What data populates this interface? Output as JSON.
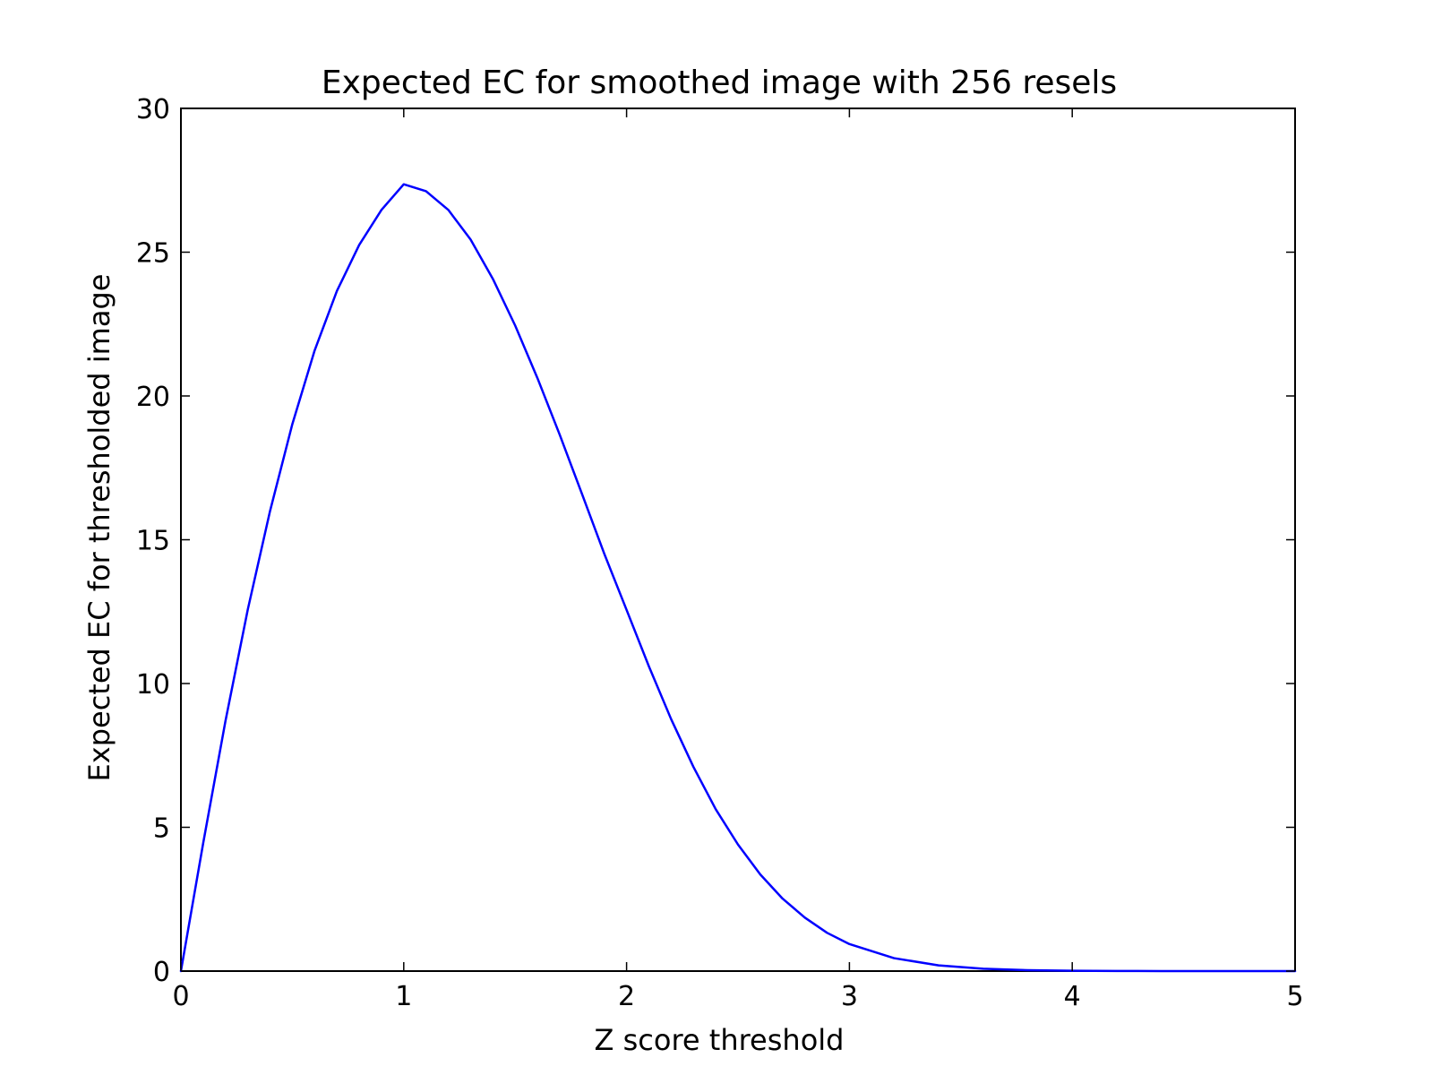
{
  "chart_data": {
    "type": "line",
    "title": "Expected EC for smoothed image with 256 resels",
    "xlabel": "Z score threshold",
    "ylabel": "Expected EC for thresholded image",
    "xlim": [
      0,
      5
    ],
    "ylim": [
      0,
      30
    ],
    "xticks": [
      0,
      1,
      2,
      3,
      4,
      5
    ],
    "yticks": [
      0,
      5,
      10,
      15,
      20,
      25,
      30
    ],
    "xtick_labels": [
      "0",
      "1",
      "2",
      "3",
      "4",
      "5"
    ],
    "ytick_labels": [
      "0",
      "5",
      "10",
      "15",
      "20",
      "25",
      "30"
    ],
    "grid": false,
    "line_color": "#0000ff",
    "series": [
      {
        "x": [
          0,
          0.1,
          0.2,
          0.3,
          0.4,
          0.5,
          0.6,
          0.7,
          0.8,
          0.9,
          1.0,
          1.1,
          1.2,
          1.3,
          1.4,
          1.5,
          1.6,
          1.7,
          1.8,
          1.9,
          2.0,
          2.1,
          2.2,
          2.3,
          2.4,
          2.5,
          2.6,
          2.7,
          2.8,
          2.9,
          3.0,
          3.2,
          3.4,
          3.6,
          3.8,
          4.0,
          4.2,
          4.4,
          4.6,
          4.8,
          5.0
        ],
        "y": [
          0,
          4.45,
          8.7,
          12.57,
          16.0,
          19.02,
          21.58,
          23.65,
          25.25,
          26.47,
          27.36,
          27.12,
          26.47,
          25.44,
          24.07,
          22.45,
          20.62,
          18.65,
          16.59,
          14.51,
          12.56,
          10.6,
          8.76,
          7.1,
          5.63,
          4.4,
          3.36,
          2.52,
          1.86,
          1.33,
          0.94,
          0.45,
          0.2,
          0.08,
          0.03,
          0.01,
          0.004,
          0.001,
          0.0004,
          0.0001,
          0.0
        ]
      }
    ]
  }
}
